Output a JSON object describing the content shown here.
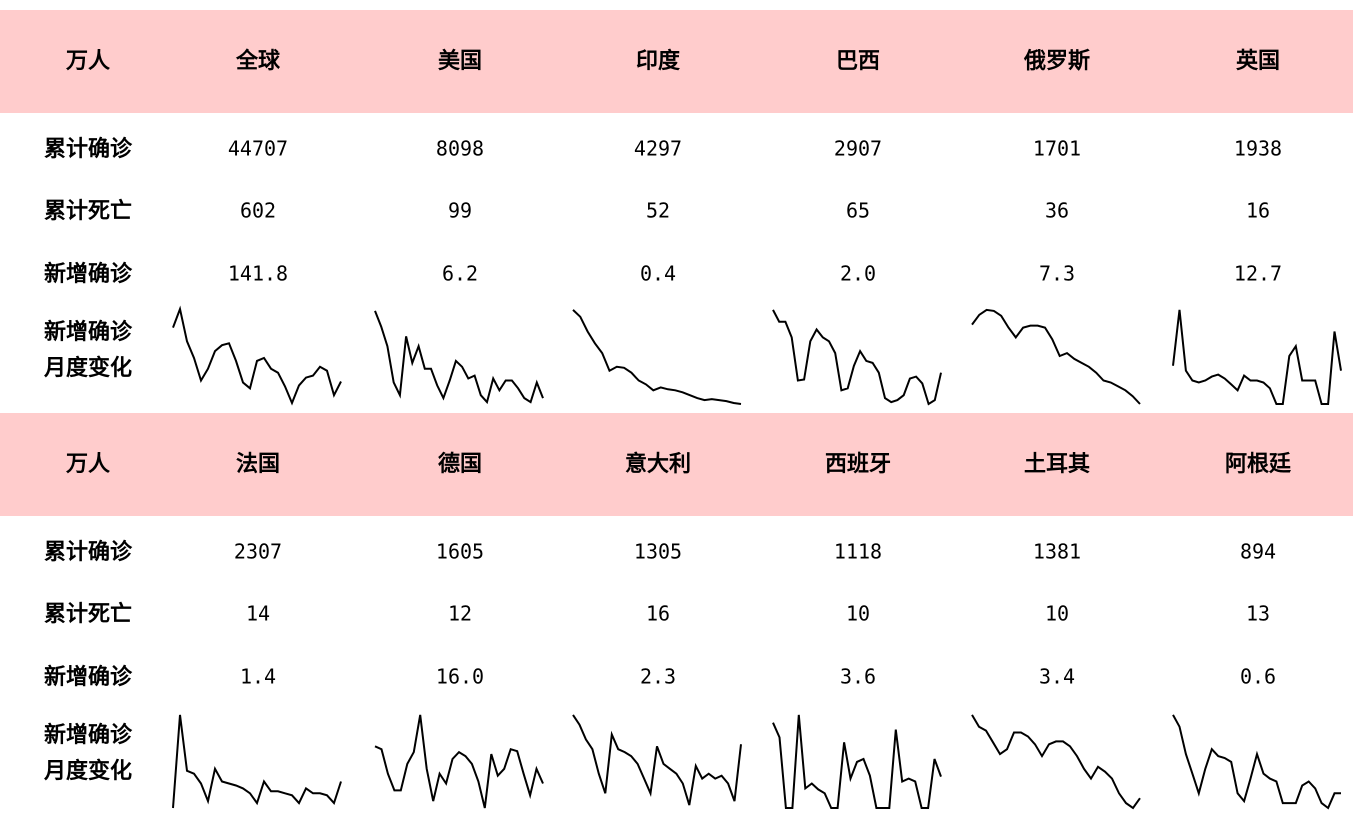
{
  "blocks": [
    {
      "header": [
        "万人",
        "全球",
        "美国",
        "印度",
        "巴西",
        "俄罗斯",
        "英国"
      ],
      "rows": [
        {
          "label": "累计确诊",
          "values": [
            "44707",
            "8098",
            "4297",
            "2907",
            "1701",
            "1938"
          ]
        },
        {
          "label": "累计死亡",
          "values": [
            "602",
            "99",
            "52",
            "65",
            "36",
            "16"
          ]
        },
        {
          "label": "新增确诊",
          "values": [
            "141.8",
            "6.2",
            "0.4",
            "2.0",
            "7.3",
            "12.7"
          ]
        }
      ],
      "sparkline": {
        "label": [
          "新增确诊",
          "月度变化"
        ],
        "series": [
          [
            79,
            98,
            65,
            48,
            25,
            37,
            55,
            61,
            63,
            45,
            23,
            17,
            45,
            48,
            37,
            33,
            19,
            2,
            20,
            28,
            30,
            39,
            35,
            10,
            24
          ],
          [
            96,
            80,
            60,
            23,
            10,
            70,
            43,
            60,
            37,
            37,
            20,
            7,
            25,
            45,
            39,
            27,
            30,
            10,
            3,
            27,
            15,
            25,
            25,
            17,
            7,
            3,
            23,
            7
          ],
          [
            97,
            90,
            75,
            63,
            53,
            35,
            39,
            38,
            33,
            25,
            21,
            15,
            18,
            16,
            15,
            13,
            10,
            7,
            5,
            6,
            5,
            4,
            2,
            1
          ],
          [
            97,
            85,
            85,
            69,
            25,
            26,
            65,
            77,
            69,
            65,
            53,
            15,
            17,
            40,
            55,
            45,
            43,
            33,
            7,
            3,
            5,
            10,
            27,
            29,
            22,
            1,
            5,
            33
          ],
          [
            82,
            92,
            97,
            96,
            91,
            79,
            69,
            79,
            81,
            81,
            79,
            67,
            50,
            53,
            47,
            43,
            39,
            33,
            25,
            23,
            19,
            15,
            9,
            1
          ],
          [
            40,
            97,
            35,
            25,
            23,
            25,
            29,
            31,
            27,
            21,
            15,
            30,
            25,
            25,
            23,
            17,
            1,
            1,
            50,
            60,
            25,
            25,
            25,
            1,
            1,
            75,
            35
          ]
        ]
      }
    },
    {
      "header": [
        "万人",
        "法国",
        "德国",
        "意大利",
        "西班牙",
        "土耳其",
        "阿根廷"
      ],
      "rows": [
        {
          "label": "累计确诊",
          "values": [
            "2307",
            "1605",
            "1305",
            "1118",
            "1381",
            "894"
          ]
        },
        {
          "label": "累计死亡",
          "values": [
            "14",
            "12",
            "16",
            "10",
            "10",
            "13"
          ]
        },
        {
          "label": "新增确诊",
          "values": [
            "1.4",
            "16.0",
            "2.3",
            "3.6",
            "3.4",
            "0.6"
          ]
        }
      ],
      "sparkline": {
        "label": [
          "新增确诊",
          "月度变化"
        ],
        "series": [
          [
            0,
            95,
            38,
            35,
            25,
            7,
            40,
            27,
            25,
            23,
            20,
            15,
            5,
            27,
            17,
            17,
            15,
            13,
            5,
            20,
            15,
            15,
            13,
            5,
            27
          ],
          [
            63,
            60,
            35,
            18,
            18,
            45,
            57,
            95,
            40,
            7,
            35,
            25,
            50,
            57,
            53,
            45,
            27,
            0,
            55,
            33,
            40,
            60,
            58,
            35,
            13,
            40,
            25
          ],
          [
            95,
            85,
            70,
            60,
            35,
            15,
            75,
            60,
            57,
            53,
            45,
            30,
            15,
            63,
            45,
            40,
            35,
            25,
            3,
            43,
            30,
            35,
            30,
            33,
            25,
            7,
            65
          ],
          [
            87,
            72,
            0,
            0,
            95,
            20,
            25,
            19,
            15,
            0,
            0,
            67,
            30,
            47,
            50,
            33,
            0,
            0,
            0,
            80,
            27,
            30,
            27,
            0,
            0,
            50,
            32
          ],
          [
            95,
            83,
            79,
            67,
            55,
            60,
            77,
            77,
            73,
            65,
            53,
            65,
            68,
            68,
            63,
            53,
            40,
            30,
            42,
            37,
            30,
            15,
            5,
            0,
            10
          ],
          [
            95,
            83,
            55,
            35,
            15,
            40,
            60,
            53,
            51,
            47,
            15,
            7,
            30,
            55,
            35,
            30,
            27,
            5,
            5,
            5,
            23,
            27,
            20,
            5,
            0,
            15,
            15
          ]
        ]
      }
    }
  ]
}
